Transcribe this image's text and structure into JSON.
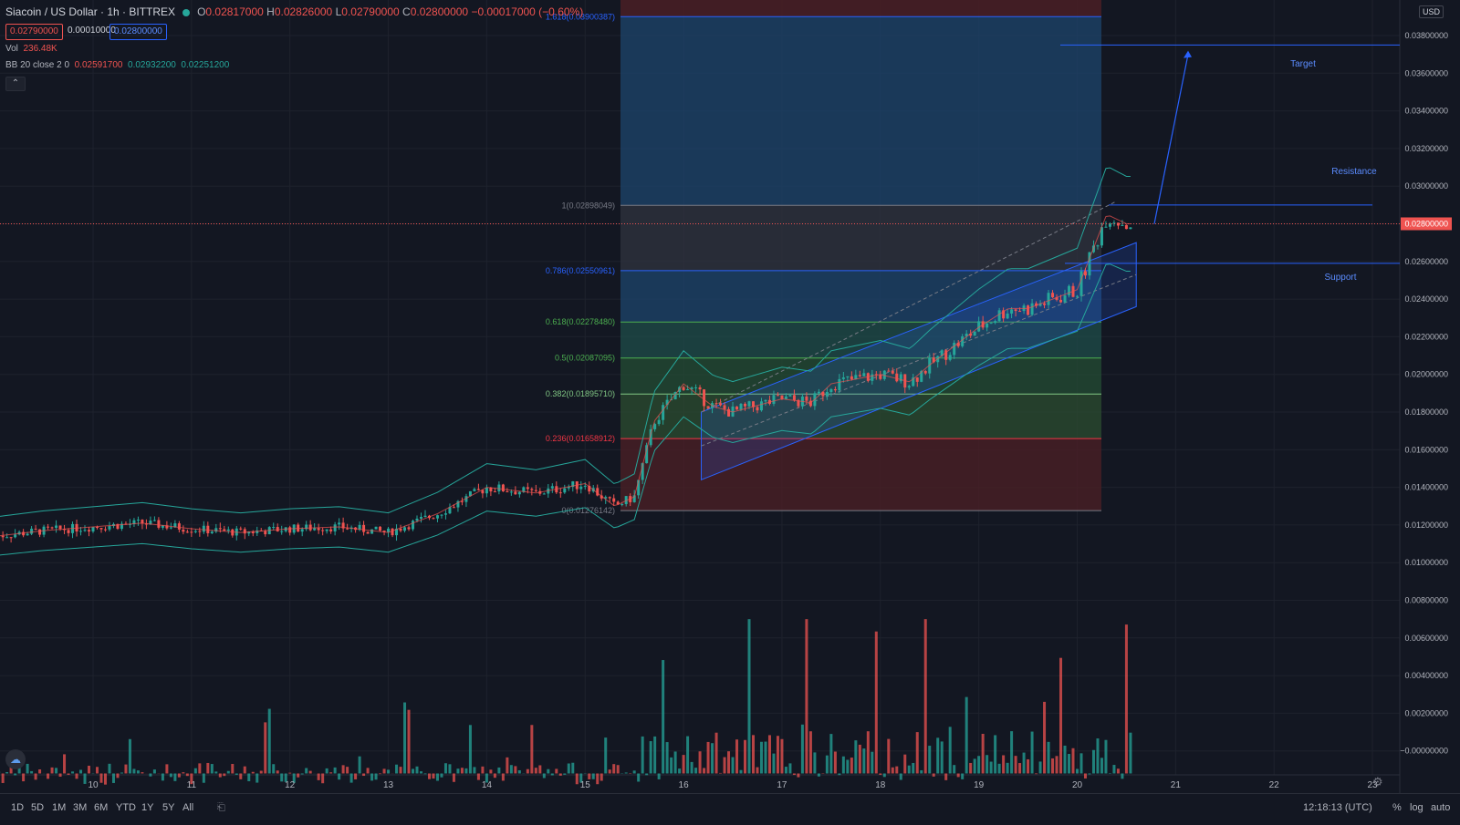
{
  "header": {
    "symbol": "Siacoin / US Dollar · 1h · BITTREX",
    "o_label": "O",
    "o_val": "0.02817000",
    "h_label": "H",
    "h_val": "0.02826000",
    "l_label": "L",
    "l_val": "0.02790000",
    "c_label": "C",
    "c_val": "0.02800000",
    "change": "−0.00017000 (−0.60%)",
    "bid": "0.02790000",
    "spread": "0.00010000",
    "ask": "0.02800000",
    "vol_label": "Vol",
    "vol_val": "236.48K",
    "bb_label": "BB 20 close 2 0",
    "bb_basis": "0.02591700",
    "bb_upper": "0.02932200",
    "bb_lower": "0.02251200"
  },
  "currency": "USD",
  "price_axis": [
    "0.03800000",
    "0.03600000",
    "0.03400000",
    "0.03200000",
    "0.03000000",
    "0.02800000",
    "0.02600000",
    "0.02400000",
    "0.02200000",
    "0.02000000",
    "0.01800000",
    "0.01600000",
    "0.01400000",
    "0.01200000",
    "0.01000000",
    "0.00800000",
    "0.00600000",
    "0.00400000",
    "0.00200000",
    "−0.00000000"
  ],
  "last_price_label": "0.02800000",
  "time_axis": [
    "10",
    "11",
    "12",
    "13",
    "14",
    "15",
    "16",
    "17",
    "18",
    "19",
    "20",
    "21",
    "22",
    "23"
  ],
  "fib_levels": [
    {
      "label": "1.618(0.03900387)",
      "value": 0.039004,
      "color": "#2962ff"
    },
    {
      "label": "1(0.02898049)",
      "value": 0.02898,
      "color": "#787b86"
    },
    {
      "label": "0.786(0.02550961)",
      "value": 0.02551,
      "color": "#2962ff"
    },
    {
      "label": "0.618(0.02278480)",
      "value": 0.022785,
      "color": "#4caf50"
    },
    {
      "label": "0.5(0.02087095)",
      "value": 0.020871,
      "color": "#4caf50"
    },
    {
      "label": "0.382(0.01895710)",
      "value": 0.018957,
      "color": "#81c784"
    },
    {
      "label": "0.236(0.01658912)",
      "value": 0.016589,
      "color": "#f23645"
    },
    {
      "label": "0(0.01276142)",
      "value": 0.012761,
      "color": "#787b86"
    }
  ],
  "annotations": {
    "target": "Target",
    "resistance": "Resistance",
    "support": "Support"
  },
  "ranges": [
    "1D",
    "5D",
    "1M",
    "3M",
    "6M",
    "YTD",
    "1Y",
    "5Y",
    "All"
  ],
  "clock": "12:18:13 (UTC)",
  "scale_opts": [
    "%",
    "log",
    "auto"
  ],
  "colors": {
    "up": "#26a69a",
    "down": "#ef5350",
    "bg": "#131722",
    "grid": "#1e222d",
    "accent": "#2962ff"
  },
  "chart_data": {
    "type": "candlestick",
    "title": "Siacoin / US Dollar · 1h · BITTREX",
    "x_unit": "day",
    "x_range": [
      9.0,
      23.5
    ],
    "ylim": [
      -0.002,
      0.04
    ],
    "x": [
      9.0,
      9.5,
      10.0,
      10.5,
      11.0,
      11.5,
      12.0,
      12.5,
      13.0,
      13.5,
      14.0,
      14.5,
      15.0,
      15.3,
      15.5,
      15.7,
      16.0,
      16.3,
      16.5,
      17.0,
      17.3,
      17.5,
      18.0,
      18.3,
      18.5,
      19.0,
      19.3,
      19.5,
      20.0,
      20.3,
      20.5
    ],
    "close": [
      0.0114,
      0.0117,
      0.0119,
      0.0121,
      0.0118,
      0.0116,
      0.0118,
      0.0119,
      0.0116,
      0.0126,
      0.014,
      0.0137,
      0.0142,
      0.013,
      0.0135,
      0.0175,
      0.0195,
      0.0183,
      0.018,
      0.0187,
      0.0185,
      0.0195,
      0.02,
      0.0196,
      0.0205,
      0.0225,
      0.0235,
      0.0235,
      0.0245,
      0.0285,
      0.028
    ],
    "volume_peak": 0.009,
    "grid": true
  }
}
